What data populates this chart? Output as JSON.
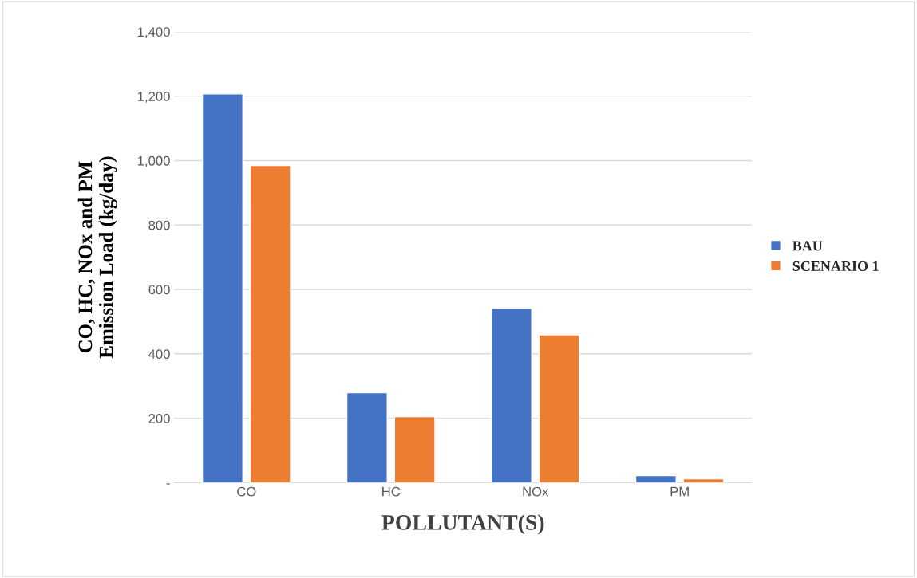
{
  "chart_data": {
    "type": "bar",
    "xlabel": "POLLUTANT(S)",
    "ylabel": "CO, HC, NOx and PM\nEmission Load (kg/day)",
    "categories": [
      "CO",
      "HC",
      "NOx",
      "PM"
    ],
    "series": [
      {
        "name": "BAU",
        "color": "#4472c4",
        "values": [
          1207,
          279,
          541,
          22
        ]
      },
      {
        "name": "SCENARIO 1",
        "color": "#ed7d31",
        "values": [
          985,
          205,
          459,
          12
        ]
      }
    ],
    "ylim": [
      0,
      1400
    ],
    "yticks": [
      {
        "value": 0,
        "label": "-"
      },
      {
        "value": 200,
        "label": "200"
      },
      {
        "value": 400,
        "label": "400"
      },
      {
        "value": 600,
        "label": "600"
      },
      {
        "value": 800,
        "label": "800"
      },
      {
        "value": 1000,
        "label": "1,000"
      },
      {
        "value": 1200,
        "label": "1,200"
      },
      {
        "value": 1400,
        "label": "1,400"
      }
    ],
    "grid": "y",
    "legend": "right"
  }
}
